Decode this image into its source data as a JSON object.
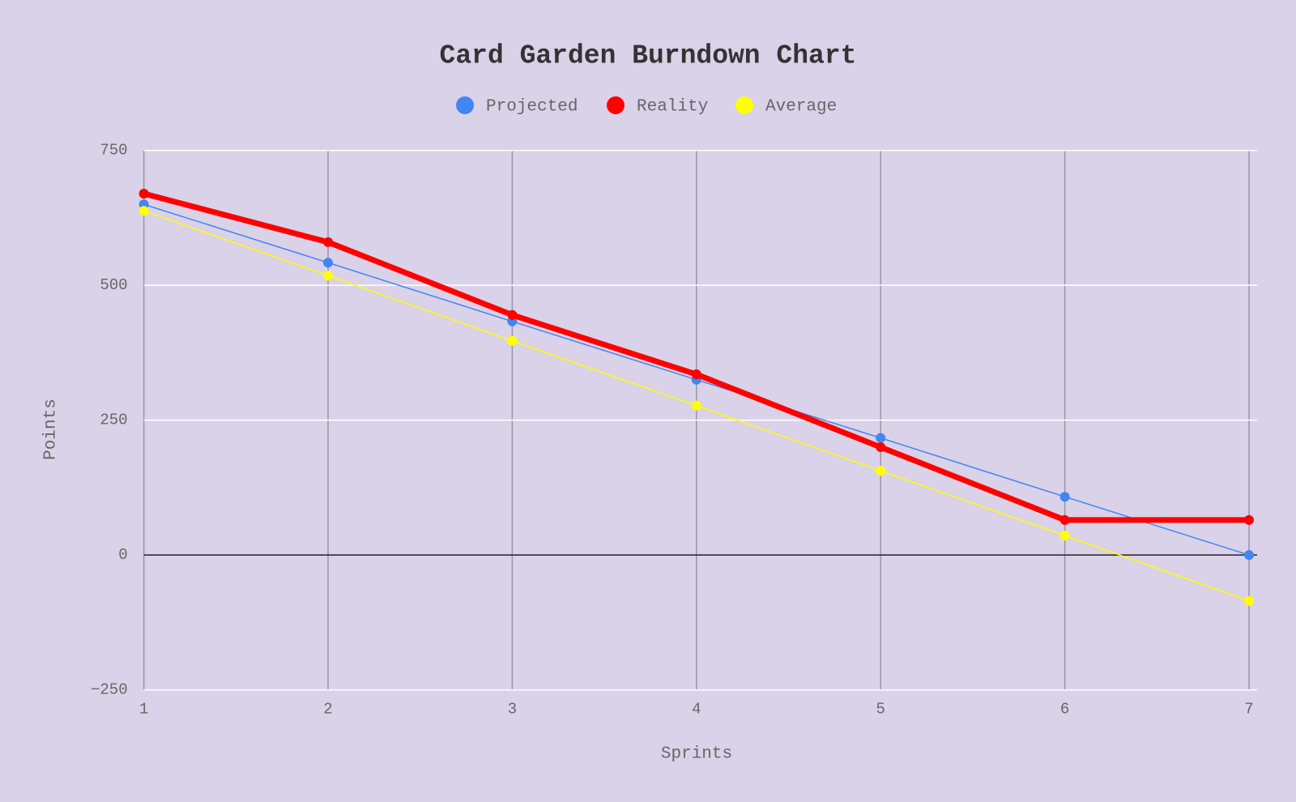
{
  "chart_data": {
    "type": "line",
    "title": "Card Garden Burndown Chart",
    "x_label": "Sprints",
    "y_label": "Points",
    "x": [
      1,
      2,
      3,
      4,
      5,
      6,
      7
    ],
    "xlim": [
      1,
      7
    ],
    "xticks": [
      1,
      2,
      3,
      4,
      5,
      6,
      7
    ],
    "ylim": [
      -250,
      750
    ],
    "yticks": [
      {
        "value": -250,
        "label": "−250"
      },
      0,
      250,
      500,
      750
    ],
    "grid": true,
    "legend": "top",
    "series": [
      {
        "name": "Projected",
        "color": "#4285f4",
        "line_width": 1.5,
        "values": [
          650,
          542,
          433,
          325,
          217,
          108,
          0
        ]
      },
      {
        "name": "Reality",
        "color": "#ff0000",
        "line_width": 7,
        "values": [
          670,
          580,
          445,
          335,
          200,
          65,
          65
        ]
      },
      {
        "name": "Average",
        "color": "#ffff00",
        "line_width": 1.5,
        "values": [
          638,
          518,
          397,
          277,
          156,
          36,
          -85
        ]
      }
    ]
  }
}
